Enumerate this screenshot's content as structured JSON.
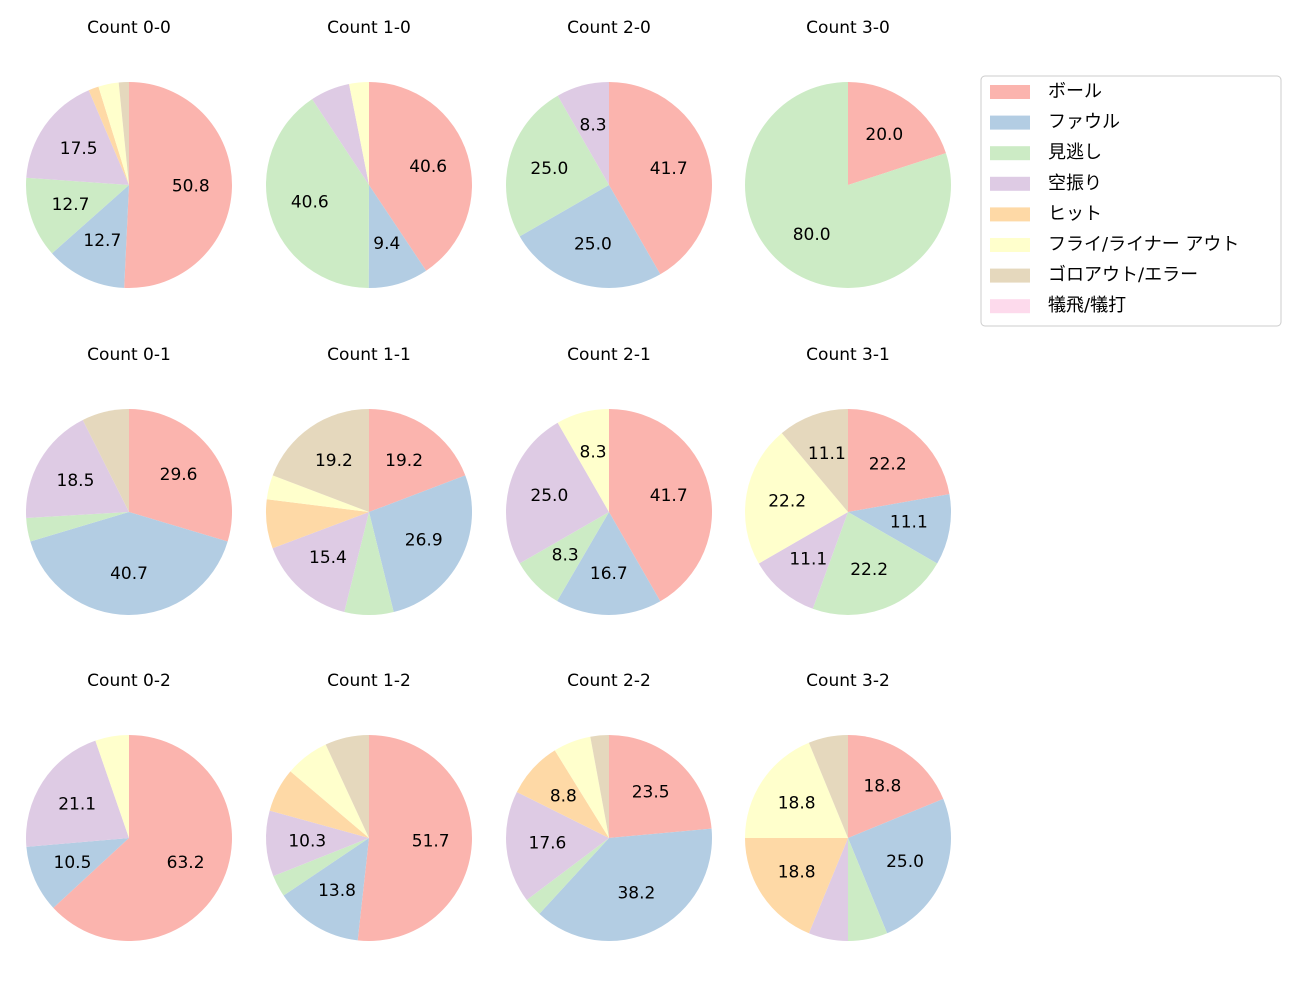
{
  "chart_data": {
    "type": "pie",
    "categories": [
      "ボール",
      "ファウル",
      "見逃し",
      "空振り",
      "ヒット",
      "フライ/ライナー アウト",
      "ゴロアウト/エラー",
      "犠飛/犠打"
    ],
    "colors": [
      "#fbb4ae",
      "#b3cde3",
      "#ccebc5",
      "#decbe4",
      "#fed9a6",
      "#ffffcc",
      "#e5d8bd",
      "#fddaec"
    ],
    "legend": "upper right",
    "pies": [
      {
        "title": "Count 0-0",
        "values": [
          50.8,
          12.7,
          12.7,
          17.5,
          1.6,
          3.2,
          1.6,
          0
        ],
        "value_labels": [
          "50.8",
          "12.7",
          "12.7",
          "17.5",
          null,
          null,
          null,
          null
        ]
      },
      {
        "title": "Count 1-0",
        "values": [
          40.6,
          9.4,
          40.6,
          6.2,
          0,
          3.1,
          0,
          0
        ],
        "value_labels": [
          "40.6",
          "9.4",
          "40.6",
          null,
          null,
          null,
          null,
          null
        ]
      },
      {
        "title": "Count 2-0",
        "values": [
          41.7,
          25.0,
          25.0,
          8.3,
          0,
          0,
          0,
          0
        ],
        "value_labels": [
          "41.7",
          "25.0",
          "25.0",
          "8.3",
          null,
          null,
          null,
          null
        ]
      },
      {
        "title": "Count 3-0",
        "values": [
          20.0,
          0,
          80.0,
          0,
          0,
          0,
          0,
          0
        ],
        "value_labels": [
          "20.0",
          null,
          "80.0",
          null,
          null,
          null,
          null,
          null
        ]
      },
      {
        "title": "Count 0-1",
        "values": [
          29.6,
          40.7,
          3.7,
          18.5,
          0,
          0,
          7.4,
          0
        ],
        "value_labels": [
          "29.6",
          "40.7",
          null,
          "18.5",
          null,
          null,
          null,
          null
        ]
      },
      {
        "title": "Count 1-1",
        "values": [
          19.2,
          26.9,
          7.7,
          15.4,
          7.7,
          3.8,
          19.2,
          0
        ],
        "value_labels": [
          "19.2",
          "26.9",
          null,
          "15.4",
          null,
          null,
          "19.2",
          null
        ]
      },
      {
        "title": "Count 2-1",
        "values": [
          41.7,
          16.7,
          8.3,
          25.0,
          0,
          8.3,
          0,
          0
        ],
        "value_labels": [
          "41.7",
          "16.7",
          "8.3",
          "25.0",
          null,
          "8.3",
          null,
          null
        ]
      },
      {
        "title": "Count 3-1",
        "values": [
          22.2,
          11.1,
          22.2,
          11.1,
          0,
          22.2,
          11.1,
          0
        ],
        "value_labels": [
          "22.2",
          "11.1",
          "22.2",
          "11.1",
          null,
          "22.2",
          "11.1",
          null
        ]
      },
      {
        "title": "Count 0-2",
        "values": [
          63.2,
          10.5,
          0,
          21.1,
          0,
          5.3,
          0,
          0
        ],
        "value_labels": [
          "63.2",
          "10.5",
          null,
          "21.1",
          null,
          null,
          null,
          null
        ]
      },
      {
        "title": "Count 1-2",
        "values": [
          51.7,
          13.8,
          3.4,
          10.3,
          6.9,
          6.9,
          6.9,
          0
        ],
        "value_labels": [
          "51.7",
          "13.8",
          null,
          "10.3",
          null,
          null,
          null,
          null
        ]
      },
      {
        "title": "Count 2-2",
        "values": [
          23.5,
          38.2,
          2.9,
          17.6,
          8.8,
          5.9,
          2.9,
          0
        ],
        "value_labels": [
          "23.5",
          "38.2",
          null,
          "17.6",
          "8.8",
          null,
          null,
          null
        ]
      },
      {
        "title": "Count 3-2",
        "values": [
          18.8,
          25.0,
          6.2,
          6.2,
          18.8,
          18.8,
          6.2,
          0
        ],
        "value_labels": [
          "18.8",
          "25.0",
          null,
          null,
          "18.8",
          "18.8",
          null,
          null
        ]
      }
    ]
  }
}
